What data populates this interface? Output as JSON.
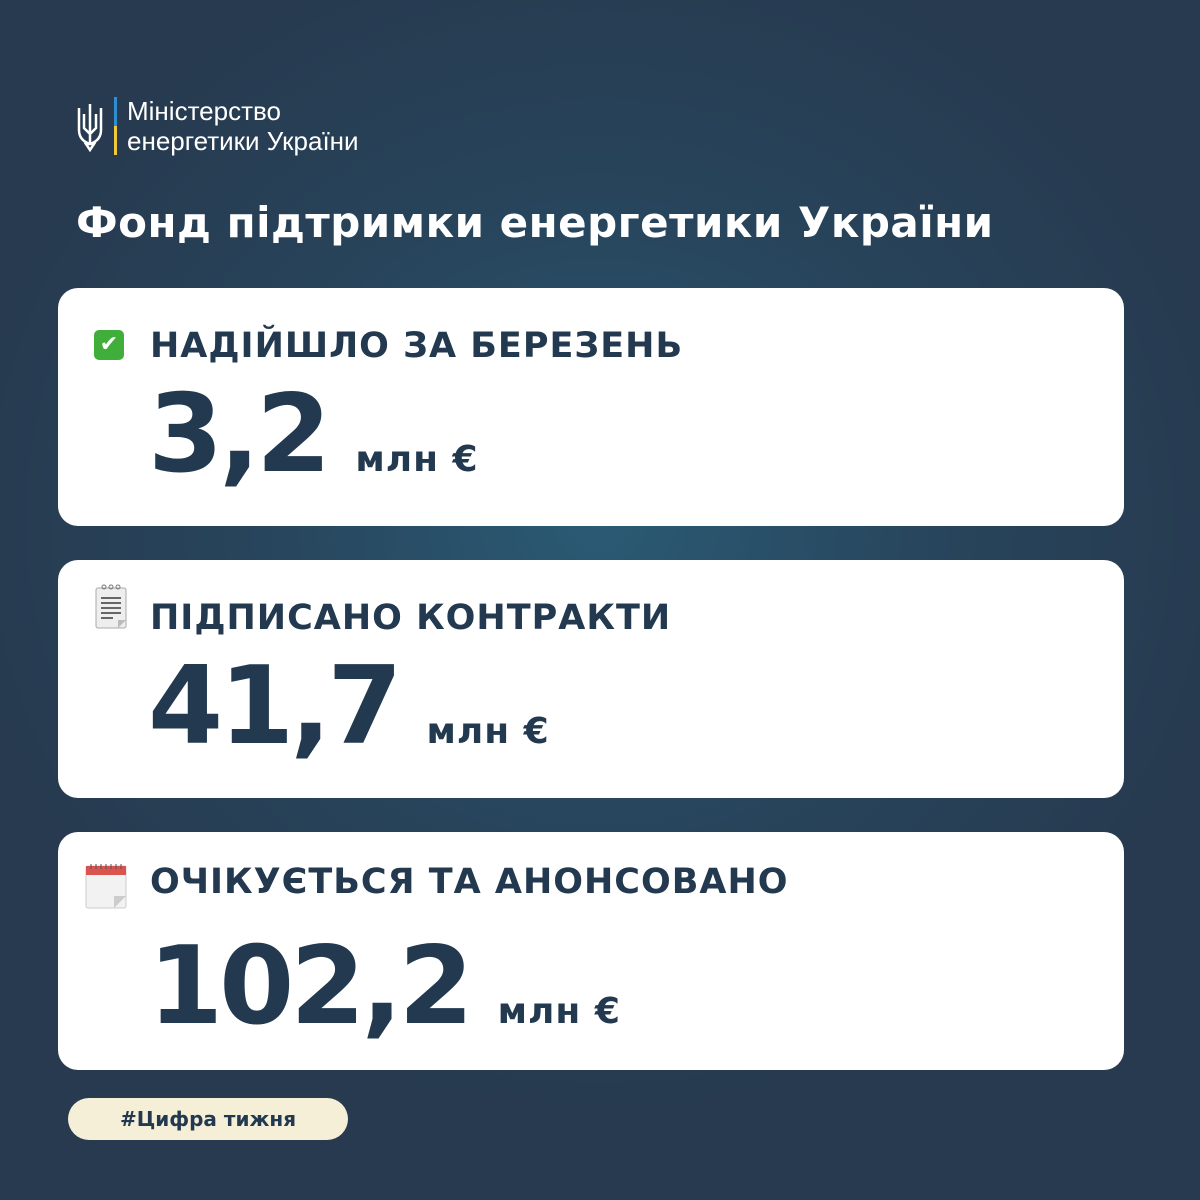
{
  "header": {
    "ministry_line1": "Міністерство",
    "ministry_line2": "енергетики України",
    "logo_icon": "trident-icon"
  },
  "title": "Фонд підтримки енергетики України",
  "cards": [
    {
      "icon": "check-mark-icon",
      "label": "НАДІЙШЛО ЗА БЕРЕЗЕНЬ",
      "value": "3,2",
      "unit": "млн €"
    },
    {
      "icon": "notepad-icon",
      "label": "ПІДПИСАНО КОНТРАКТИ",
      "value": "41,7",
      "unit": "млн €"
    },
    {
      "icon": "calendar-icon",
      "label": "ОЧІКУЄТЬСЯ ТА АНОНСОВАНО",
      "value": "102,2",
      "unit": "млн €"
    }
  ],
  "hashtag": "#Цифра тижня",
  "colors": {
    "text_dark": "#23394f",
    "background": "#273a4f",
    "tag_bg": "#f5efd8"
  }
}
